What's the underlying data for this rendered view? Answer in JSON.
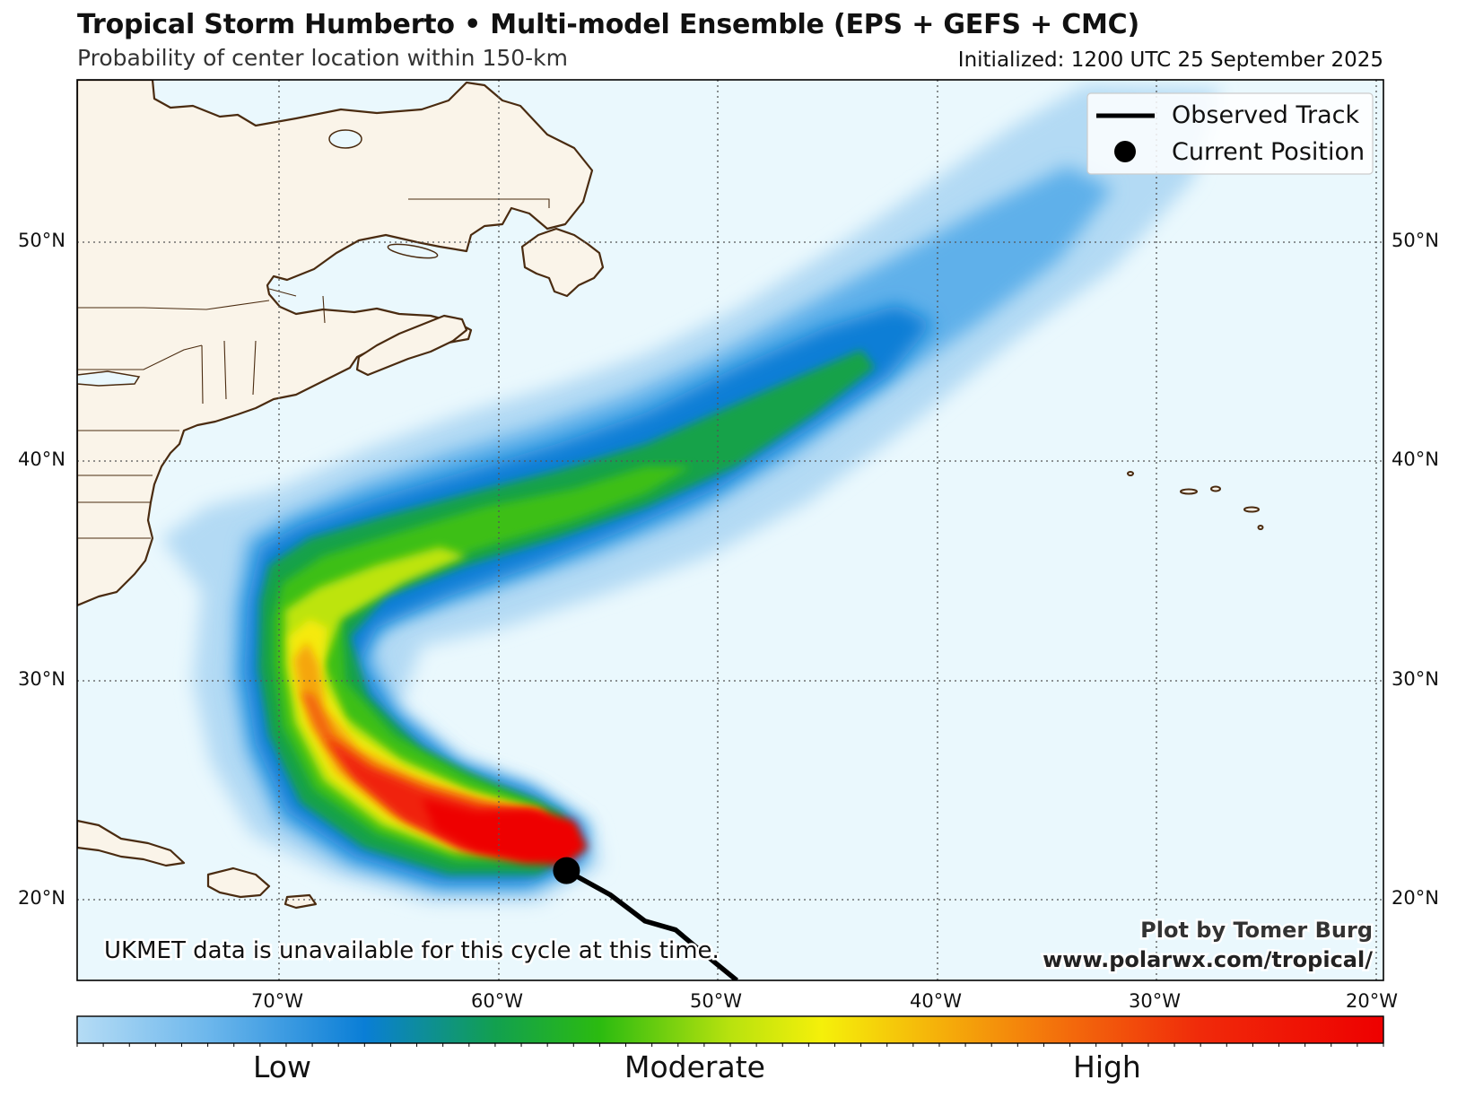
{
  "header": {
    "title": "Tropical Storm Humberto • Multi-model Ensemble (EPS + GEFS + CMC)",
    "subtitle": "Probability of center location within 150-km",
    "initialized": "Initialized: 1200 UTC 25 September 2025"
  },
  "map": {
    "lat_labels": [
      "50°N",
      "40°N",
      "30°N",
      "20°N"
    ],
    "lon_labels": [
      "70°W",
      "60°W",
      "50°W",
      "40°W",
      "30°W",
      "20°W"
    ],
    "extent": {
      "lon_min": -79.2,
      "lon_max": -19.4,
      "lat_min": 16.3,
      "lat_max": 57.3
    },
    "ocean_color": "#eaf8fd",
    "land_color": "#faf4e9",
    "coast_color": "#4a2b10"
  },
  "legend": {
    "observed_track_label": "Observed Track",
    "current_position_label": "Current Position"
  },
  "annotations": {
    "ukmet_note": "UKMET data is unavailable for this cycle at this time.",
    "credit_line1": "Plot by Tomer Burg",
    "credit_line2": "www.polarwx.com/tropical/"
  },
  "colorbar": {
    "low_label": "Low",
    "moderate_label": "Moderate",
    "high_label": "High",
    "colors": [
      "#b5dcf5",
      "#3f9ee6",
      "#0a7ed6",
      "#12a04f",
      "#3ec212",
      "#b8e20e",
      "#f5f00a",
      "#f5b00a",
      "#f36a0c",
      "#f02a0a",
      "#ee0000"
    ]
  },
  "storm": {
    "name": "Tropical Storm Humberto",
    "current_position": {
      "lon": -56.8,
      "lat": 21.3
    },
    "observed_track": [
      {
        "lon": -56.8,
        "lat": 21.3
      },
      {
        "lon": -54.8,
        "lat": 20.2
      },
      {
        "lon": -53.2,
        "lat": 19.0
      },
      {
        "lon": -51.8,
        "lat": 18.6
      },
      {
        "lon": -50.6,
        "lat": 17.6
      },
      {
        "lon": -49.0,
        "lat": 16.3
      }
    ]
  }
}
